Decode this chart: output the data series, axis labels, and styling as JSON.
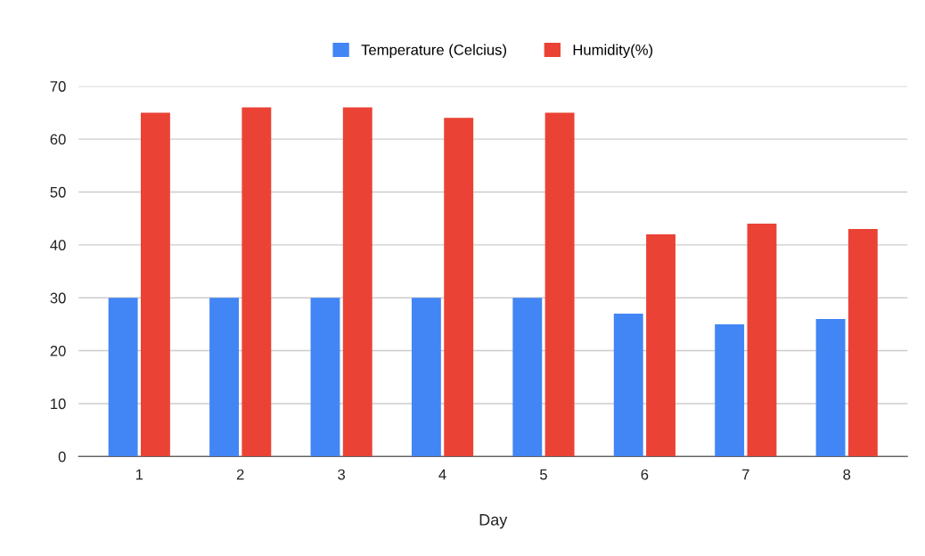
{
  "chart_data": {
    "type": "bar",
    "xlabel": "Day",
    "categories": [
      "1",
      "2",
      "3",
      "4",
      "5",
      "6",
      "7",
      "8"
    ],
    "series": [
      {
        "name": "Temperature (Celcius)",
        "color": "#4285f4",
        "values": [
          30,
          30,
          30,
          30,
          30,
          27,
          25,
          26
        ]
      },
      {
        "name": "Humidity(%)",
        "color": "#ea4335",
        "values": [
          65,
          66,
          66,
          64,
          65,
          42,
          44,
          43
        ]
      }
    ],
    "ylim": [
      0,
      70
    ],
    "yticks": [
      0,
      10,
      20,
      30,
      40,
      50,
      60,
      70
    ],
    "grid": "y",
    "legend": "top"
  }
}
